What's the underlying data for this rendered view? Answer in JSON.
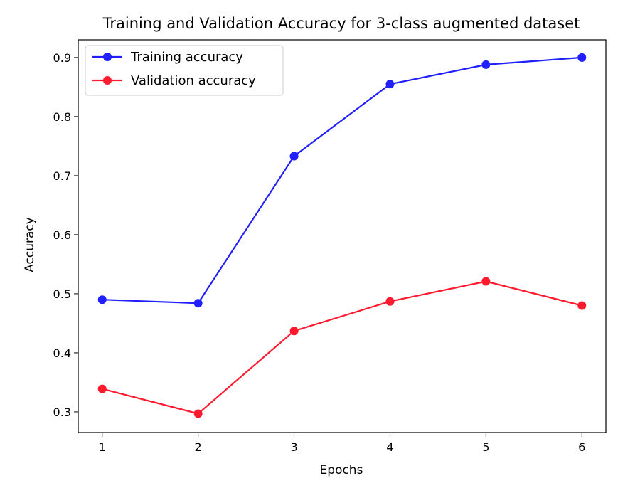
{
  "chart_data": {
    "type": "line",
    "title": "Training and Validation Accuracy for 3-class augmented dataset",
    "xlabel": "Epochs",
    "ylabel": "Accuracy",
    "x": [
      1,
      2,
      3,
      4,
      5,
      6
    ],
    "x_ticks": [
      "1",
      "2",
      "3",
      "4",
      "5",
      "6"
    ],
    "y_ticks": [
      "0.3",
      "0.4",
      "0.5",
      "0.6",
      "0.7",
      "0.8",
      "0.9"
    ],
    "xlim": [
      0.75,
      6.25
    ],
    "ylim": [
      0.265,
      0.93
    ],
    "grid": false,
    "legend_position": "top-left",
    "series": [
      {
        "name": "Training accuracy",
        "color": "#1f1fff",
        "values": [
          0.49,
          0.484,
          0.733,
          0.855,
          0.888,
          0.9
        ]
      },
      {
        "name": "Validation accuracy",
        "color": "#ff1a2e",
        "values": [
          0.339,
          0.297,
          0.437,
          0.487,
          0.521,
          0.48
        ]
      }
    ]
  }
}
